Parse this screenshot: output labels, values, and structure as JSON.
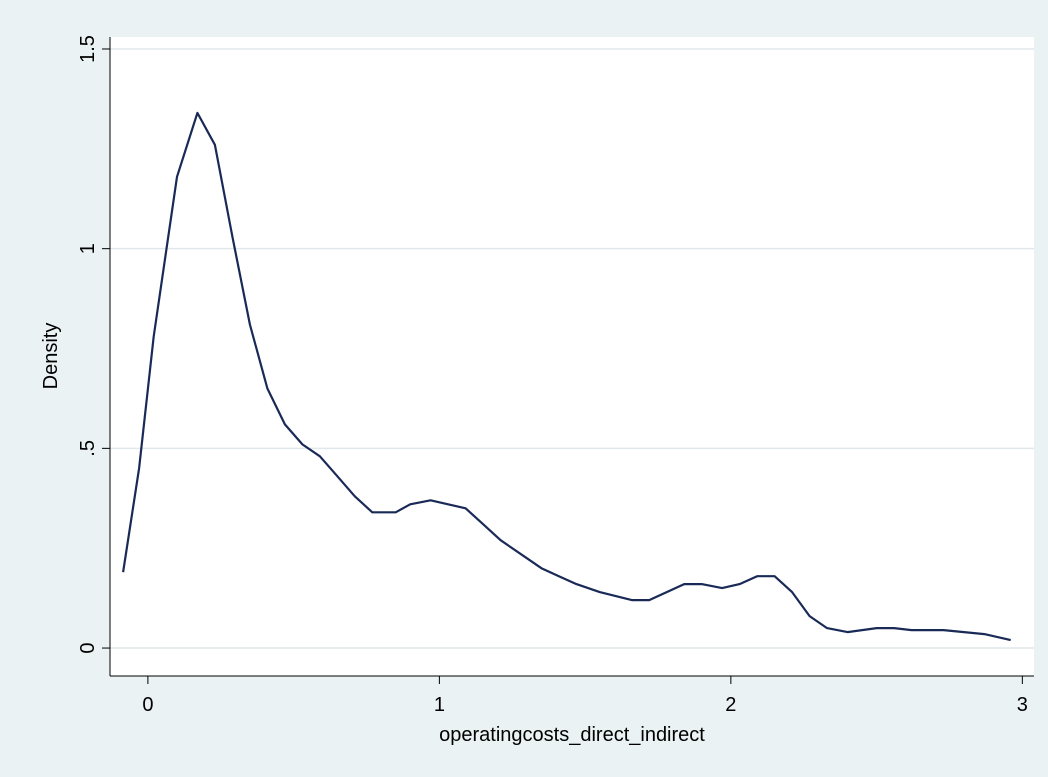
{
  "colors": {
    "outer_background": "#eaf2f3",
    "plot_background": "#ffffff",
    "gridline": "#e0e8ec",
    "line": "#1a2a57",
    "axis": "#000000"
  },
  "chart_data": {
    "type": "line",
    "title": "",
    "xlabel": "operatingcosts_direct_indirect",
    "ylabel": "Density",
    "xlim": [
      -0.13,
      3.04
    ],
    "ylim": [
      -0.07,
      1.53
    ],
    "xticks": [
      0,
      1,
      2,
      3
    ],
    "xtick_labels": [
      "0",
      "1",
      "2",
      "3"
    ],
    "yticks": [
      0,
      0.5,
      1,
      1.5
    ],
    "ytick_labels": [
      "0",
      ".5",
      "1",
      "1.5"
    ],
    "grid": true,
    "series": [
      {
        "x": [
          -0.085,
          -0.03,
          0.02,
          0.1,
          0.17,
          0.23,
          0.29,
          0.35,
          0.41,
          0.47,
          0.53,
          0.59,
          0.65,
          0.71,
          0.77,
          0.85,
          0.9,
          0.97,
          1.03,
          1.09,
          1.15,
          1.21,
          1.29,
          1.35,
          1.41,
          1.47,
          1.55,
          1.66,
          1.72,
          1.78,
          1.84,
          1.9,
          1.97,
          2.03,
          2.09,
          2.15,
          2.21,
          2.27,
          2.33,
          2.4,
          2.5,
          2.56,
          2.62,
          2.67,
          2.73,
          2.8,
          2.87,
          2.93,
          2.96
        ],
        "y": [
          0.19,
          0.45,
          0.78,
          1.18,
          1.34,
          1.26,
          1.03,
          0.81,
          0.65,
          0.56,
          0.51,
          0.48,
          0.43,
          0.38,
          0.34,
          0.34,
          0.36,
          0.37,
          0.36,
          0.35,
          0.31,
          0.27,
          0.23,
          0.2,
          0.18,
          0.16,
          0.14,
          0.12,
          0.12,
          0.14,
          0.16,
          0.16,
          0.15,
          0.16,
          0.18,
          0.18,
          0.14,
          0.08,
          0.05,
          0.04,
          0.05,
          0.05,
          0.045,
          0.045,
          0.045,
          0.04,
          0.035,
          0.025,
          0.02
        ]
      }
    ]
  }
}
